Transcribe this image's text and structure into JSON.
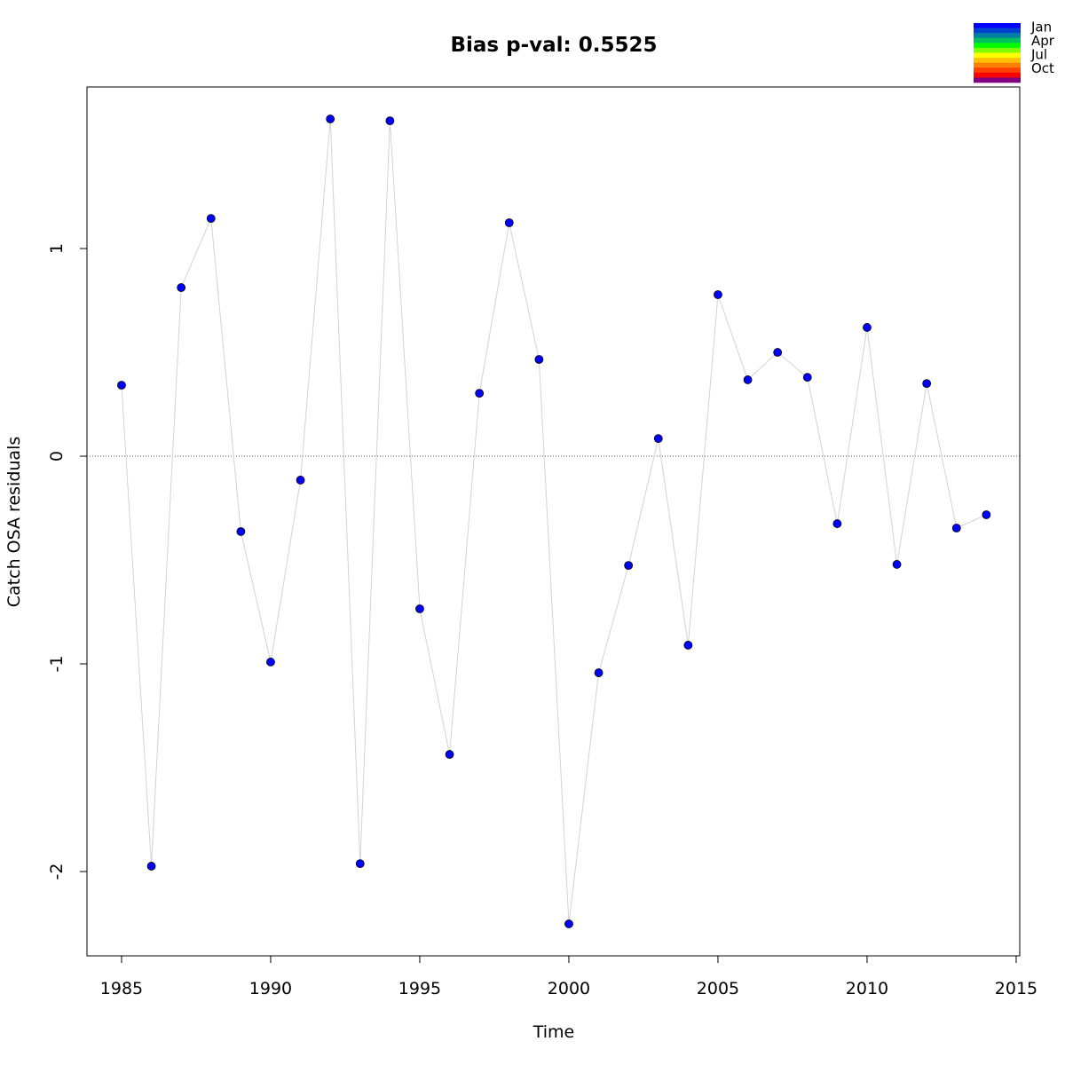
{
  "chart_data": {
    "type": "scatter",
    "title": "Bias p-val: 0.5525",
    "title_color": "#228b22",
    "x_label": "Time",
    "y_label": "Catch OSA residuals",
    "x": [
      1985,
      1986,
      1987,
      1988,
      1989,
      1990,
      1991,
      1992,
      1993,
      1994,
      1995,
      1996,
      1997,
      1998,
      1999,
      2000,
      2001,
      2002,
      2003,
      2004,
      2005,
      2006,
      2007,
      2008,
      2009,
      2010,
      2011,
      2012,
      2013,
      2014
    ],
    "series": [
      {
        "color": "#0000ff",
        "line_color": "#d3d3d3",
        "values": [
          0.342,
          -1.974,
          0.812,
          1.145,
          -0.363,
          -0.991,
          -0.115,
          1.624,
          -1.962,
          1.615,
          -0.735,
          -1.436,
          0.303,
          1.124,
          0.466,
          -2.252,
          -1.043,
          -0.526,
          0.085,
          -0.91,
          0.778,
          0.368,
          0.5,
          0.38,
          -0.325,
          0.62,
          -0.521,
          0.35,
          -0.346,
          -0.282
        ]
      }
    ],
    "xlim": [
      1983.84,
      2015.12
    ],
    "ylim": [
      -2.406,
      1.778
    ],
    "xticks": [
      1985,
      1990,
      1995,
      2000,
      2005,
      2010,
      2015
    ],
    "yticks": [
      -2,
      -1,
      0,
      1
    ],
    "hline": 0,
    "legend": {
      "position": "top-right",
      "labels": [
        "Jan",
        "Apr",
        "Jul",
        "Oct"
      ],
      "colors": [
        "#0000ff",
        "#0040d0",
        "#0080a0",
        "#00c060",
        "#00ff00",
        "#80ff00",
        "#ffff00",
        "#ffc000",
        "#ff8000",
        "#ff4000",
        "#ff0000",
        "#800080"
      ]
    }
  }
}
